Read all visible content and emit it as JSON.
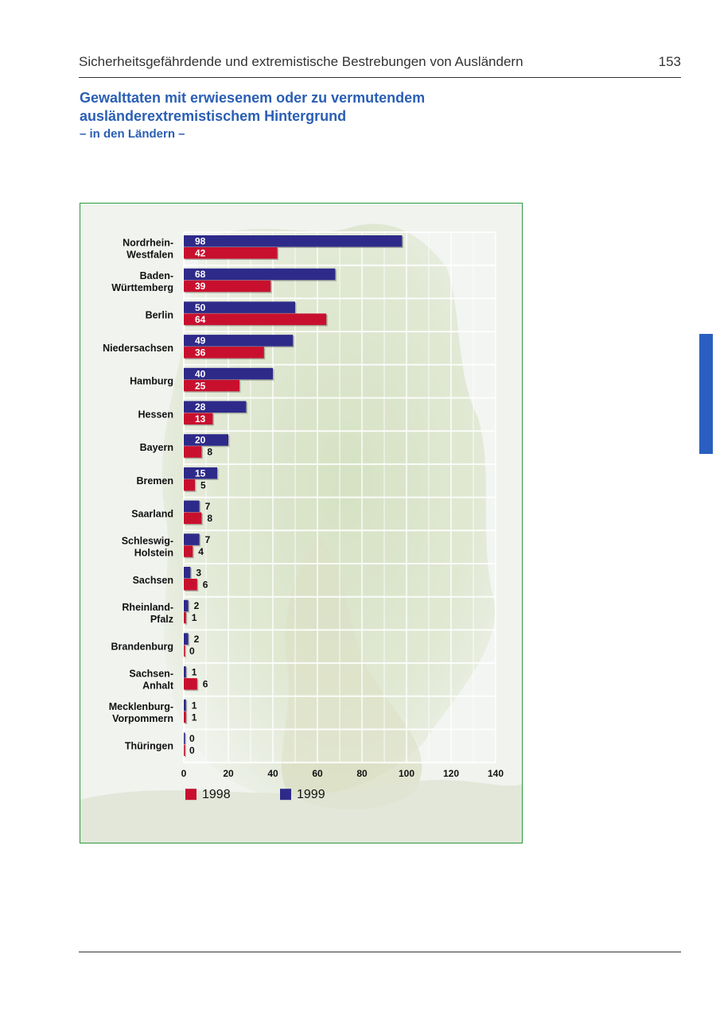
{
  "header": {
    "running_title": "Sicherheitsgefährdende und extremistische Bestrebungen von Ausländern",
    "page_number": "153"
  },
  "heading": {
    "title_line1": "Gewalttaten mit erwiesenem oder zu vermutendem",
    "title_line2": "ausländerextremistischem Hintergrund",
    "subtitle": "– in den Ländern –"
  },
  "colors": {
    "series_1998": "#c8102e",
    "series_1999": "#2e2a8a",
    "title_blue": "#2a5fb4",
    "frame_green": "#2d9a3e",
    "side_tab": "#2a5fc0"
  },
  "chart_data": {
    "type": "bar",
    "orientation": "horizontal",
    "grid": true,
    "legend_position": "bottom-left",
    "xlim": [
      0,
      140
    ],
    "x_ticks": [
      "0",
      "20",
      "40",
      "60",
      "80",
      "100",
      "120",
      "140"
    ],
    "categories": [
      [
        "Nordrhein-",
        "Westfalen"
      ],
      [
        "Baden-",
        "Württemberg"
      ],
      [
        "Berlin"
      ],
      [
        "Niedersachsen"
      ],
      [
        "Hamburg"
      ],
      [
        "Hessen"
      ],
      [
        "Bayern"
      ],
      [
        "Bremen"
      ],
      [
        "Saarland"
      ],
      [
        "Schleswig-",
        "Holstein"
      ],
      [
        "Sachsen"
      ],
      [
        "Rheinland-",
        "Pfalz"
      ],
      [
        "Brandenburg"
      ],
      [
        "Sachsen-",
        "Anhalt"
      ],
      [
        "Mecklenburg-",
        "Vorpommern"
      ],
      [
        "Thüringen"
      ]
    ],
    "series": [
      {
        "name": "1999",
        "color": "#2e2a8a",
        "values": [
          98,
          68,
          50,
          49,
          40,
          28,
          20,
          15,
          7,
          7,
          3,
          2,
          2,
          1,
          1,
          0
        ]
      },
      {
        "name": "1998",
        "color": "#c8102e",
        "values": [
          42,
          39,
          64,
          36,
          25,
          13,
          8,
          5,
          8,
          4,
          6,
          1,
          0,
          6,
          1,
          0
        ]
      }
    ],
    "legend": [
      "1998",
      "1999"
    ]
  }
}
